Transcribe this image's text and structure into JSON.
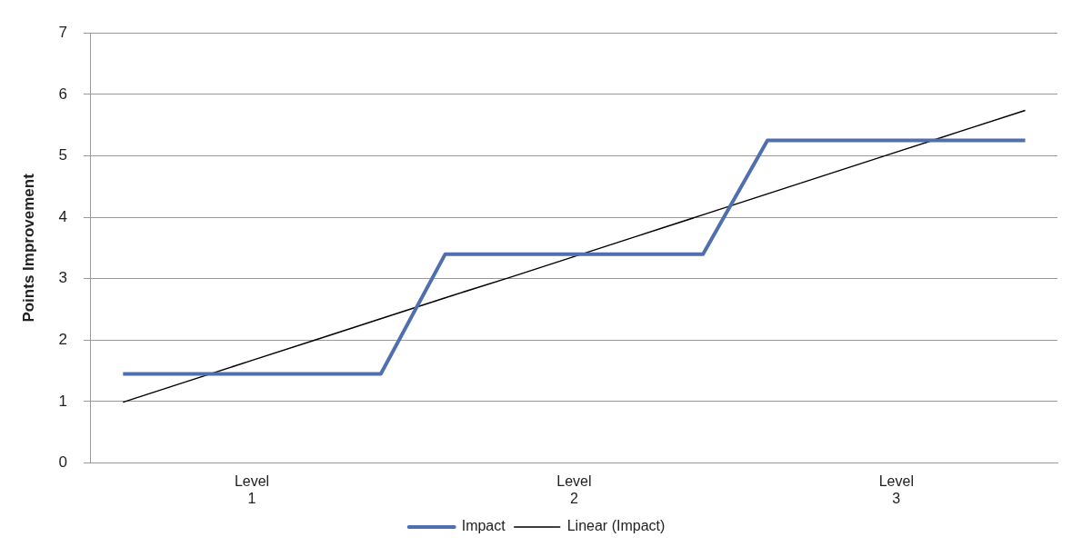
{
  "chart_data": {
    "type": "line",
    "ylabel": "Points Improvement",
    "categories": [
      null,
      null,
      "Level 1",
      null,
      null,
      null,
      null,
      "Level 2",
      null,
      null,
      null,
      null,
      "Level 3",
      null,
      null
    ],
    "series": [
      {
        "name": "Impact",
        "color": "#4f6fae",
        "values": [
          1.45,
          1.45,
          1.45,
          1.45,
          1.45,
          3.4,
          3.4,
          3.4,
          3.4,
          3.4,
          5.25,
          5.25,
          5.25,
          5.25,
          5.25
        ]
      },
      {
        "name": "Linear (Impact)",
        "color": "#000000",
        "values": [
          0.99,
          1.33,
          1.67,
          2.01,
          2.35,
          2.69,
          3.02,
          3.36,
          3.7,
          4.04,
          4.38,
          4.72,
          5.06,
          5.4,
          5.74
        ]
      }
    ],
    "ylim": [
      0,
      7
    ],
    "yticks": [
      0,
      1,
      2,
      3,
      4,
      5,
      6,
      7
    ],
    "grid": "y",
    "legend": "bottom",
    "marker": "none",
    "line_style": "solid"
  }
}
